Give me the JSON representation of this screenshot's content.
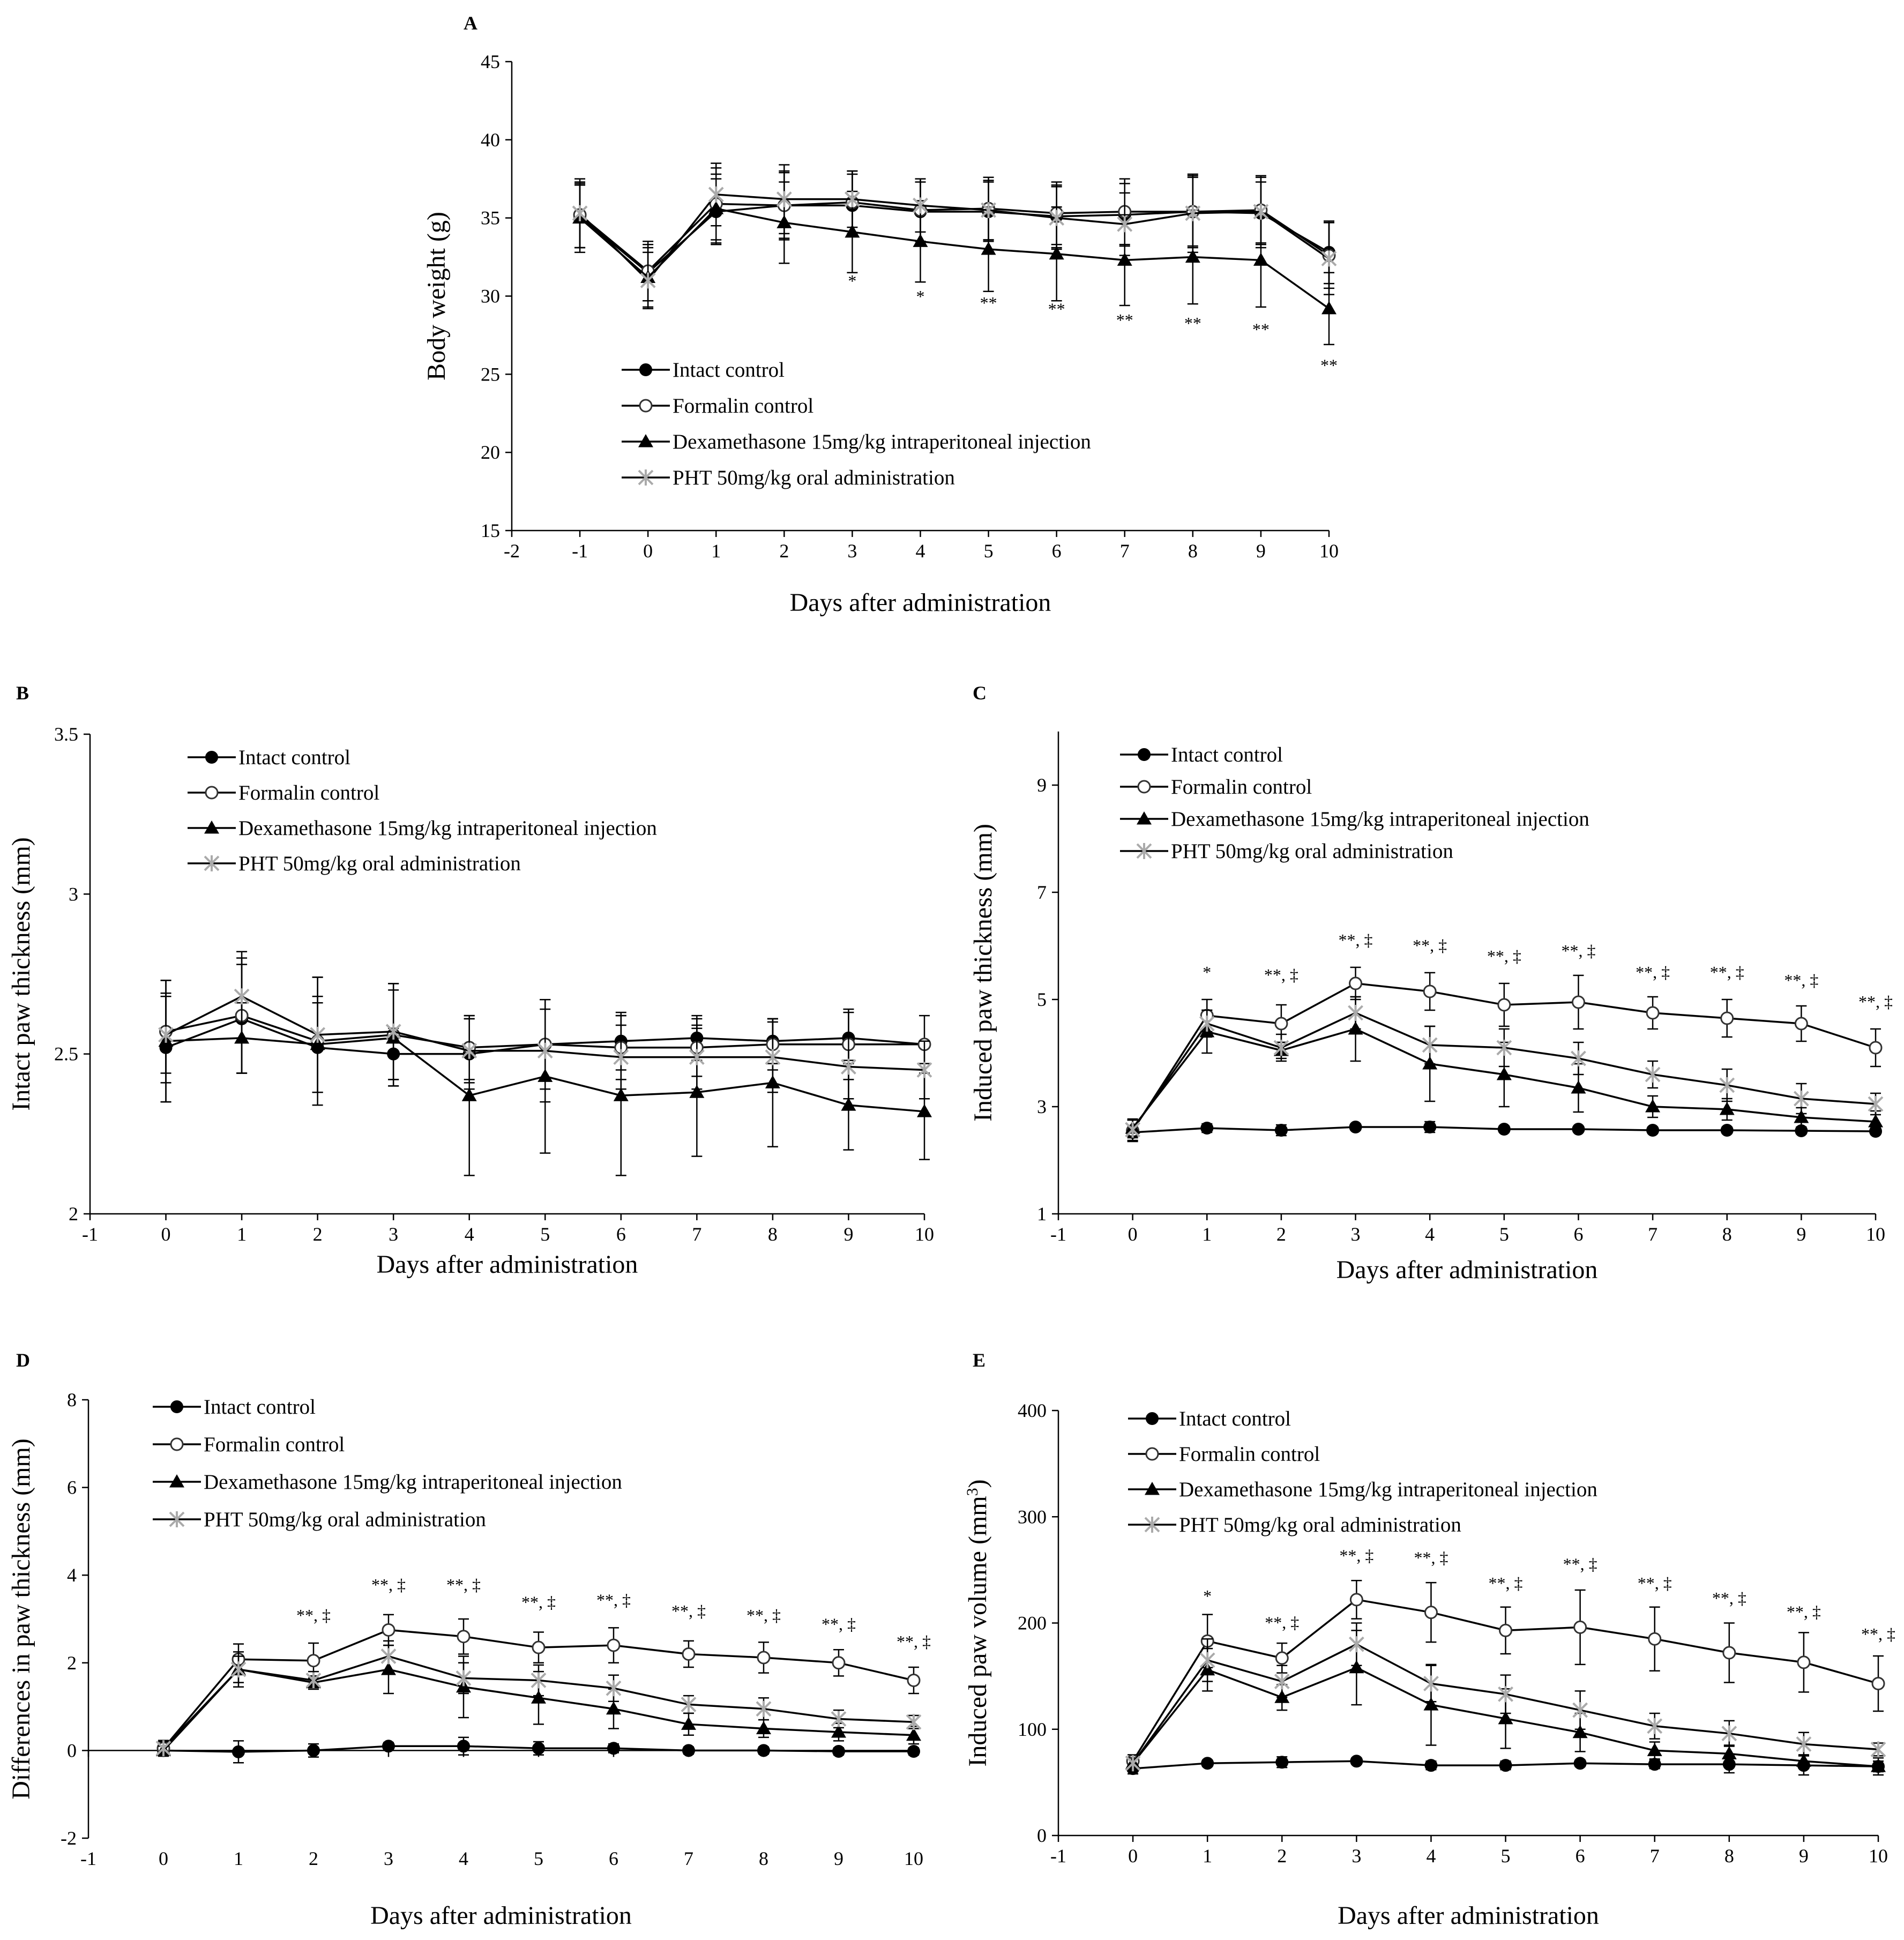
{
  "legend": [
    "Intact control",
    "Formalin control",
    "Dexamethasone 15mg/kg intraperitoneal injection",
    "PHT 50mg/kg oral administration"
  ],
  "chart_data": [
    {
      "panel": "A",
      "type": "line",
      "xlabel": "Days after administration",
      "ylabel": "Body weight (g)",
      "ylabel_sup": "",
      "xlim": [
        -2,
        10
      ],
      "ylim": [
        15,
        45
      ],
      "xticks": [
        -2,
        -1,
        0,
        1,
        2,
        3,
        4,
        5,
        6,
        7,
        8,
        9,
        10
      ],
      "yticks": [
        15,
        20,
        25,
        30,
        35,
        40,
        45
      ],
      "x": [
        -1,
        0,
        1,
        2,
        3,
        4,
        5,
        6,
        7,
        8,
        9,
        10
      ],
      "series": [
        {
          "name": "Intact control",
          "marker": "filled-circle",
          "values": [
            35.1,
            31.5,
            35.4,
            35.8,
            35.8,
            35.4,
            35.4,
            35.1,
            35.2,
            35.4,
            35.3,
            32.8
          ],
          "errors": [
            2.0,
            1.8,
            2.1,
            2.1,
            2.0,
            1.9,
            1.9,
            2.0,
            2.0,
            2.2,
            2.0,
            2.0
          ]
        },
        {
          "name": "Formalin control",
          "marker": "open-circle",
          "values": [
            35.2,
            31.6,
            35.9,
            35.8,
            36.0,
            35.5,
            35.6,
            35.3,
            35.4,
            35.4,
            35.5,
            32.6
          ],
          "errors": [
            2.1,
            1.9,
            2.3,
            2.2,
            2.0,
            2.0,
            2.0,
            2.0,
            2.1,
            2.3,
            2.1,
            2.1
          ]
        },
        {
          "name": "Dexamethasone 15mg/kg intraperitoneal injection",
          "marker": "filled-triangle",
          "values": [
            35.0,
            31.2,
            35.6,
            34.7,
            34.1,
            33.5,
            33.0,
            32.7,
            32.3,
            32.5,
            32.3,
            29.2
          ],
          "errors": [
            2.2,
            1.9,
            2.2,
            2.6,
            2.6,
            2.6,
            2.7,
            3.0,
            2.9,
            3.0,
            3.0,
            2.3
          ]
        },
        {
          "name": "PHT 50mg/kg oral administration",
          "marker": "asterisk",
          "values": [
            35.3,
            31.0,
            36.5,
            36.2,
            36.2,
            35.8,
            35.5,
            35.0,
            34.6,
            35.3,
            35.4,
            32.4
          ],
          "errors": [
            2.2,
            1.8,
            2.0,
            2.2,
            1.8,
            1.7,
            1.9,
            2.0,
            2.0,
            2.5,
            2.3,
            2.3
          ]
        }
      ],
      "annotations": [
        {
          "x": 3,
          "y": 30.6,
          "text": "*"
        },
        {
          "x": 4,
          "y": 29.6,
          "text": "*"
        },
        {
          "x": 5,
          "y": 29.2,
          "text": "**"
        },
        {
          "x": 6,
          "y": 28.8,
          "text": "**"
        },
        {
          "x": 7,
          "y": 28.1,
          "text": "**"
        },
        {
          "x": 8,
          "y": 27.9,
          "text": "**"
        },
        {
          "x": 9,
          "y": 27.5,
          "text": "**"
        },
        {
          "x": 10,
          "y": 25.2,
          "text": "**"
        }
      ]
    },
    {
      "panel": "B",
      "type": "line",
      "xlabel": "Days after administration",
      "ylabel": "Intact paw thickness (mm)",
      "ylabel_sup": "",
      "xlim": [
        -1,
        10
      ],
      "ylim": [
        2,
        3.5
      ],
      "xticks": [
        -1,
        0,
        1,
        2,
        3,
        4,
        5,
        6,
        7,
        8,
        9,
        10
      ],
      "yticks": [
        2,
        2.5,
        3,
        3.5
      ],
      "x": [
        0,
        1,
        2,
        3,
        4,
        5,
        6,
        7,
        8,
        9,
        10
      ],
      "series": [
        {
          "name": "Intact control",
          "marker": "filled-circle",
          "values": [
            2.52,
            2.61,
            2.52,
            2.5,
            2.5,
            2.53,
            2.54,
            2.55,
            2.54,
            2.55,
            2.53
          ],
          "errors": [
            0.17,
            0.17,
            0.14,
            0.08,
            0.11,
            0.11,
            0.09,
            0.07,
            0.07,
            0.08,
            0.0
          ]
        },
        {
          "name": "Formalin control",
          "marker": "open-circle",
          "values": [
            2.57,
            2.62,
            2.54,
            2.56,
            2.52,
            2.53,
            2.52,
            2.52,
            2.53,
            2.53,
            2.53
          ],
          "errors": [
            0.16,
            0.18,
            0.2,
            0.16,
            0.1,
            0.14,
            0.1,
            0.09,
            0.08,
            0.11,
            0.09
          ]
        },
        {
          "name": "Dexamethasone 15mg/kg intraperitoneal injection",
          "marker": "filled-triangle",
          "values": [
            2.54,
            2.55,
            2.53,
            2.55,
            2.37,
            2.43,
            2.37,
            2.38,
            2.41,
            2.34,
            2.32
          ],
          "errors": [
            0.19,
            0.11,
            0.15,
            0.15,
            0.25,
            0.24,
            0.25,
            0.2,
            0.2,
            0.14,
            0.15
          ]
        },
        {
          "name": "PHT 50mg/kg oral administration",
          "marker": "asterisk",
          "values": [
            2.56,
            2.68,
            2.56,
            2.57,
            2.51,
            2.51,
            2.49,
            2.49,
            2.49,
            2.46,
            2.45
          ],
          "errors": [
            0.12,
            0.14,
            0.18,
            0.15,
            0.1,
            0.16,
            0.1,
            0.1,
            0.11,
            0.1,
            0.09
          ]
        }
      ],
      "annotations": []
    },
    {
      "panel": "C",
      "type": "line",
      "xlabel": "Days after administration",
      "ylabel": "Induced paw thickness (mm)",
      "ylabel_sup": "",
      "xlim": [
        -1,
        10
      ],
      "ylim": [
        1,
        10
      ],
      "xticks": [
        -1,
        0,
        1,
        2,
        3,
        4,
        5,
        6,
        7,
        8,
        9,
        10
      ],
      "yticks": [
        1,
        3,
        5,
        7,
        9
      ],
      "x": [
        0,
        1,
        2,
        3,
        4,
        5,
        6,
        7,
        8,
        9,
        10
      ],
      "series": [
        {
          "name": "Intact control",
          "marker": "filled-circle",
          "values": [
            2.52,
            2.6,
            2.56,
            2.62,
            2.62,
            2.58,
            2.58,
            2.56,
            2.56,
            2.55,
            2.54
          ],
          "errors": [
            0.1,
            0.08,
            0.1,
            0.06,
            0.1,
            0.06,
            0.05,
            0.06,
            0.06,
            0.06,
            0.06
          ]
        },
        {
          "name": "Formalin control",
          "marker": "open-circle",
          "values": [
            2.55,
            4.7,
            4.55,
            5.3,
            5.15,
            4.9,
            4.95,
            4.75,
            4.65,
            4.55,
            4.1
          ],
          "errors": [
            0.2,
            0.3,
            0.35,
            0.3,
            0.35,
            0.4,
            0.5,
            0.3,
            0.35,
            0.33,
            0.35
          ]
        },
        {
          "name": "Dexamethasone 15mg/kg intraperitoneal injection",
          "marker": "filled-triangle",
          "values": [
            2.6,
            4.4,
            4.05,
            4.45,
            3.8,
            3.6,
            3.35,
            3.0,
            2.95,
            2.8,
            2.72
          ],
          "errors": [
            0.15,
            0.4,
            0.15,
            0.6,
            0.7,
            0.6,
            0.45,
            0.2,
            0.2,
            0.18,
            0.2
          ]
        },
        {
          "name": "PHT 50mg/kg oral administration",
          "marker": "asterisk",
          "values": [
            2.57,
            4.55,
            4.1,
            4.75,
            4.15,
            4.1,
            3.9,
            3.6,
            3.4,
            3.15,
            3.05
          ],
          "errors": [
            0.2,
            0.25,
            0.25,
            0.3,
            0.35,
            0.35,
            0.3,
            0.25,
            0.3,
            0.28,
            0.2
          ]
        }
      ],
      "annotations": [
        {
          "x": 1,
          "y": 5.4,
          "text": "*"
        },
        {
          "x": 2,
          "y": 5.35,
          "text": "**, ‡"
        },
        {
          "x": 3,
          "y": 6.0,
          "text": "**, ‡"
        },
        {
          "x": 4,
          "y": 5.9,
          "text": "**, ‡"
        },
        {
          "x": 5,
          "y": 5.7,
          "text": "**, ‡"
        },
        {
          "x": 6,
          "y": 5.8,
          "text": "**, ‡"
        },
        {
          "x": 7,
          "y": 5.4,
          "text": "**, ‡"
        },
        {
          "x": 8,
          "y": 5.4,
          "text": "**, ‡"
        },
        {
          "x": 9,
          "y": 5.25,
          "text": "**, ‡"
        },
        {
          "x": 10,
          "y": 4.85,
          "text": "**, ‡"
        }
      ]
    },
    {
      "panel": "D",
      "type": "line",
      "xlabel": "Days after administration",
      "ylabel": "Differences in paw thickness (mm)",
      "ylabel_sup": "",
      "xlim": [
        -1,
        10
      ],
      "ylim": [
        -2,
        8
      ],
      "xticks": [
        -1,
        0,
        1,
        2,
        3,
        4,
        5,
        6,
        7,
        8,
        9,
        10
      ],
      "yticks": [
        -2,
        0,
        2,
        4,
        6,
        8
      ],
      "x": [
        0,
        1,
        2,
        3,
        4,
        5,
        6,
        7,
        8,
        9,
        10
      ],
      "series": [
        {
          "name": "Intact control",
          "marker": "filled-circle",
          "values": [
            0.0,
            -0.03,
            0.0,
            0.1,
            0.1,
            0.05,
            0.05,
            0.0,
            0.0,
            -0.02,
            -0.02
          ],
          "errors": [
            0.1,
            0.25,
            0.15,
            0.08,
            0.2,
            0.15,
            0.1,
            0.08,
            0.08,
            0.08,
            0.08
          ]
        },
        {
          "name": "Formalin control",
          "marker": "open-circle",
          "values": [
            0.05,
            2.08,
            2.05,
            2.75,
            2.6,
            2.35,
            2.4,
            2.2,
            2.12,
            2.0,
            1.6
          ],
          "errors": [
            0.18,
            0.35,
            0.4,
            0.35,
            0.4,
            0.35,
            0.4,
            0.3,
            0.35,
            0.3,
            0.3
          ]
        },
        {
          "name": "Dexamethasone 15mg/kg intraperitoneal injection",
          "marker": "filled-triangle",
          "values": [
            0.0,
            1.85,
            1.55,
            1.85,
            1.45,
            1.2,
            0.95,
            0.6,
            0.5,
            0.42,
            0.35
          ],
          "errors": [
            0.1,
            0.4,
            0.15,
            0.55,
            0.7,
            0.6,
            0.45,
            0.25,
            0.2,
            0.2,
            0.2
          ]
        },
        {
          "name": "PHT 50mg/kg oral administration",
          "marker": "asterisk",
          "values": [
            0.05,
            1.85,
            1.6,
            2.15,
            1.65,
            1.6,
            1.42,
            1.05,
            0.95,
            0.72,
            0.65
          ],
          "errors": [
            0.15,
            0.3,
            0.2,
            0.35,
            0.35,
            0.35,
            0.3,
            0.2,
            0.25,
            0.2,
            0.15
          ]
        }
      ],
      "annotations": [
        {
          "x": 2,
          "y": 2.95,
          "text": "**, ‡"
        },
        {
          "x": 3,
          "y": 3.65,
          "text": "**, ‡"
        },
        {
          "x": 4,
          "y": 3.65,
          "text": "**, ‡"
        },
        {
          "x": 5,
          "y": 3.25,
          "text": "**, ‡"
        },
        {
          "x": 6,
          "y": 3.3,
          "text": "**, ‡"
        },
        {
          "x": 7,
          "y": 3.05,
          "text": "**, ‡"
        },
        {
          "x": 8,
          "y": 2.95,
          "text": "**, ‡"
        },
        {
          "x": 9,
          "y": 2.75,
          "text": "**, ‡"
        },
        {
          "x": 10,
          "y": 2.35,
          "text": "**, ‡"
        }
      ]
    },
    {
      "panel": "E",
      "type": "line",
      "xlabel": "Days after administration",
      "ylabel": "Induced paw volume (mm",
      "ylabel_sup": "3",
      "ylabel_end": ")",
      "xlim": [
        -1,
        10
      ],
      "ylim": [
        0,
        400
      ],
      "xticks": [
        -1,
        0,
        1,
        2,
        3,
        4,
        5,
        6,
        7,
        8,
        9,
        10
      ],
      "yticks": [
        0,
        100,
        200,
        300,
        400
      ],
      "x": [
        0,
        1,
        2,
        3,
        4,
        5,
        6,
        7,
        8,
        9,
        10
      ],
      "series": [
        {
          "name": "Intact control",
          "marker": "filled-circle",
          "values": [
            63,
            68,
            69,
            70,
            66,
            66,
            68,
            67,
            67,
            66,
            65
          ],
          "errors": [
            5,
            3,
            5,
            3,
            4,
            4,
            3,
            4,
            8,
            9,
            8
          ]
        },
        {
          "name": "Formalin control",
          "marker": "open-circle",
          "values": [
            70,
            183,
            167,
            222,
            210,
            193,
            196,
            185,
            172,
            163,
            143
          ],
          "errors": [
            6,
            25,
            14,
            18,
            28,
            22,
            35,
            30,
            28,
            28,
            26
          ]
        },
        {
          "name": "Dexamethasone 15mg/kg intraperitoneal injection",
          "marker": "filled-triangle",
          "values": [
            68,
            156,
            130,
            158,
            123,
            110,
            97,
            80,
            77,
            70,
            65
          ],
          "errors": [
            5,
            20,
            12,
            35,
            38,
            28,
            18,
            8,
            8,
            6,
            5
          ]
        },
        {
          "name": "PHT 50mg/kg oral administration",
          "marker": "asterisk",
          "values": [
            68,
            165,
            145,
            180,
            143,
            133,
            118,
            103,
            96,
            86,
            81
          ],
          "errors": [
            5,
            20,
            15,
            20,
            17,
            18,
            18,
            12,
            12,
            11,
            6
          ]
        }
      ],
      "annotations": [
        {
          "x": 1,
          "y": 220,
          "text": "*"
        },
        {
          "x": 2,
          "y": 195,
          "text": "**, ‡"
        },
        {
          "x": 3,
          "y": 258,
          "text": "**, ‡"
        },
        {
          "x": 4,
          "y": 256,
          "text": "**, ‡"
        },
        {
          "x": 5,
          "y": 232,
          "text": "**, ‡"
        },
        {
          "x": 6,
          "y": 250,
          "text": "**, ‡"
        },
        {
          "x": 7,
          "y": 232,
          "text": "**, ‡"
        },
        {
          "x": 8,
          "y": 218,
          "text": "**, ‡"
        },
        {
          "x": 9,
          "y": 205,
          "text": "**, ‡"
        },
        {
          "x": 10,
          "y": 184,
          "text": "**, ‡"
        }
      ]
    }
  ]
}
